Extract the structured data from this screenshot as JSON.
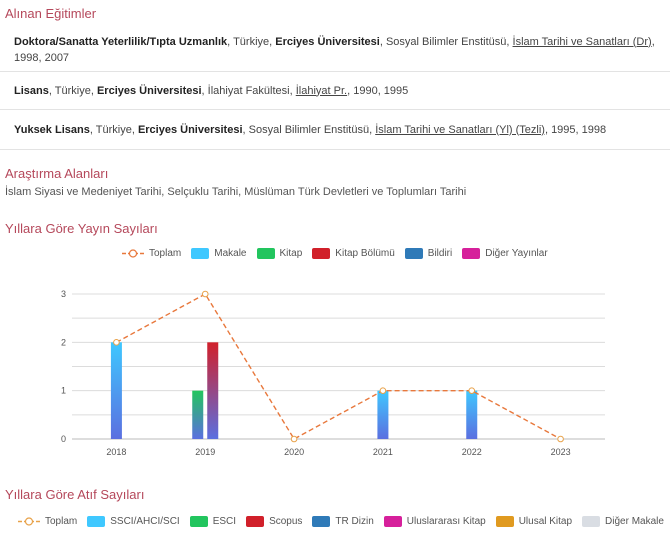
{
  "education": {
    "title": "Alınan Eğitimler",
    "rows": [
      {
        "degree": "Doktora/Sanatta Yeterlilik/Tıpta Uzmanlık",
        "country": "Türkiye",
        "university": "Erciyes Üniversitesi",
        "institute": "Sosyal Bilimler Enstitüsü",
        "program": "İslam Tarihi ve Sanatları (Dr)",
        "years": "1998, 2007"
      },
      {
        "degree": "Lisans",
        "country": "Türkiye",
        "university": "Erciyes Üniversitesi",
        "institute": "İlahiyat Fakültesi",
        "program": "İlahiyat Pr.",
        "years": "1990, 1995"
      },
      {
        "degree": "Yuksek Lisans",
        "country": "Türkiye",
        "university": "Erciyes Üniversitesi",
        "institute": "Sosyal Bilimler Enstitüsü",
        "program": "İslam Tarihi ve Sanatları (Yl) (Tezli)",
        "years": "1995, 1998"
      }
    ]
  },
  "research": {
    "title": "Araştırma Alanları",
    "text": "İslam Siyasi ve Medeniyet Tarihi, Selçuklu Tarihi, Müslüman Türk Devletleri ve Toplumları Tarihi"
  },
  "publications": {
    "title": "Yıllara Göre Yayın Sayıları",
    "legend": [
      {
        "name": "Toplam",
        "color": "#e8783c",
        "kind": "line"
      },
      {
        "name": "Makale",
        "color": "#3fc8ff",
        "kind": "bar"
      },
      {
        "name": "Kitap",
        "color": "#22c55e",
        "kind": "bar"
      },
      {
        "name": "Kitap Bölümü",
        "color": "#d1202a",
        "kind": "bar"
      },
      {
        "name": "Bildiri",
        "color": "#2f7ab8",
        "kind": "bar"
      },
      {
        "name": "Diğer Yayınlar",
        "color": "#d6209b",
        "kind": "bar"
      }
    ]
  },
  "chart_data": {
    "type": "bar",
    "categories": [
      "2018",
      "2019",
      "2020",
      "2021",
      "2022",
      "2023"
    ],
    "series": [
      {
        "name": "Makale",
        "values": [
          2,
          0,
          0,
          1,
          1,
          0
        ]
      },
      {
        "name": "Kitap",
        "values": [
          0,
          1,
          0,
          0,
          0,
          0
        ]
      },
      {
        "name": "Kitap Bölümü",
        "values": [
          0,
          2,
          0,
          0,
          0,
          0
        ]
      },
      {
        "name": "Bildiri",
        "values": [
          0,
          0,
          0,
          0,
          0,
          0
        ]
      },
      {
        "name": "Diğer Yayınlar",
        "values": [
          0,
          0,
          0,
          0,
          0,
          0
        ]
      }
    ],
    "line": {
      "name": "Toplam",
      "values": [
        2,
        3,
        0,
        1,
        1,
        0
      ]
    },
    "yticks": [
      "0",
      "1",
      "2",
      "3"
    ],
    "ylim": [
      0,
      3
    ],
    "grid": true,
    "legend_position": "top"
  },
  "citations": {
    "title": "Yıllara Göre Atıf Sayıları",
    "legend": [
      {
        "name": "Toplam",
        "color": "#e8a24a",
        "kind": "line"
      },
      {
        "name": "SSCI/AHCI/SCI",
        "color": "#3fc8ff",
        "kind": "bar"
      },
      {
        "name": "ESCI",
        "color": "#22c55e",
        "kind": "bar"
      },
      {
        "name": "Scopus",
        "color": "#d1202a",
        "kind": "bar"
      },
      {
        "name": "TR Dizin",
        "color": "#2f7ab8",
        "kind": "bar"
      },
      {
        "name": "Uluslararası Kitap",
        "color": "#d6209b",
        "kind": "bar"
      },
      {
        "name": "Ulusal Kitap",
        "color": "#e09a20",
        "kind": "bar"
      },
      {
        "name": "Diğer Makale",
        "color": "#d9dde3",
        "kind": "bar"
      }
    ]
  }
}
